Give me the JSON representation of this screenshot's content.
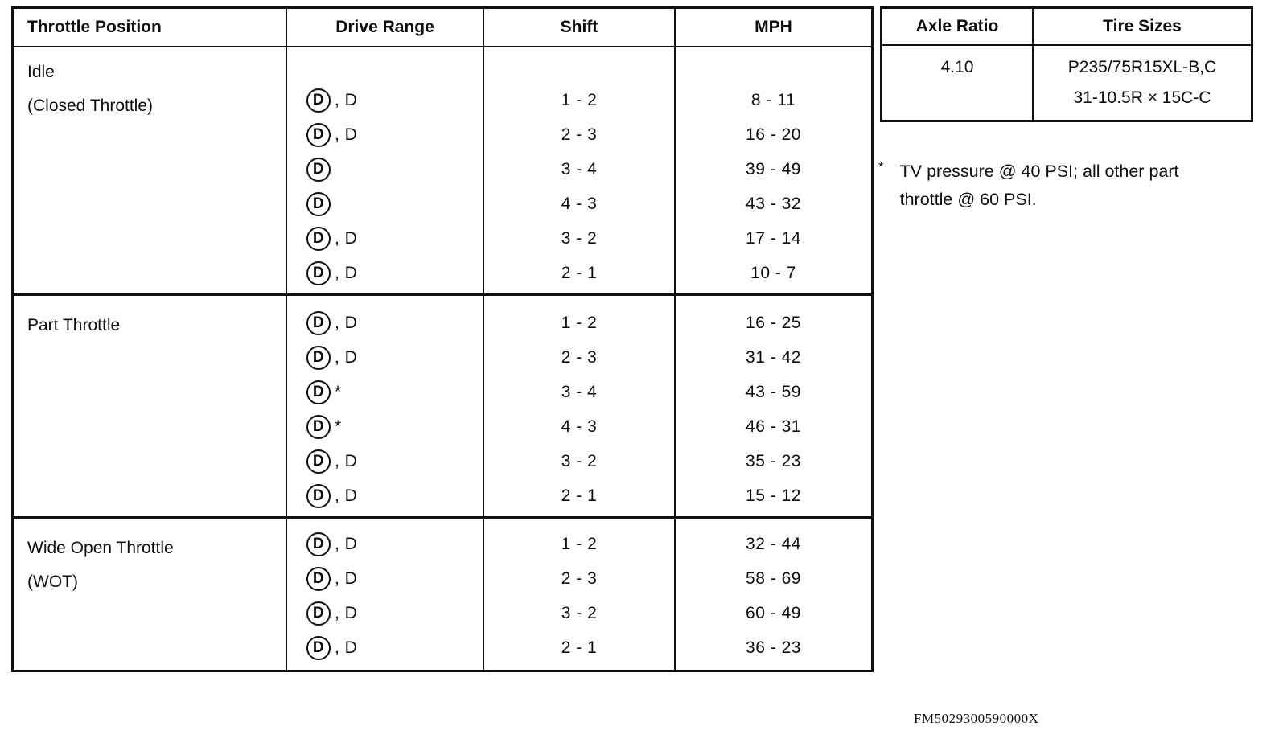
{
  "shift_table": {
    "headers": [
      "Throttle Position",
      "Drive Range",
      "Shift",
      "MPH"
    ],
    "groups": [
      {
        "position": [
          "Idle",
          "(Closed Throttle)"
        ],
        "rows": [
          {
            "circle": "D",
            "suffix": ", D",
            "shift": "1 - 2",
            "mph": "8 - 11"
          },
          {
            "circle": "D",
            "suffix": ", D",
            "shift": "2 - 3",
            "mph": "16 - 20"
          },
          {
            "circle": "D",
            "suffix": "",
            "shift": "3 - 4",
            "mph": "39 - 49"
          },
          {
            "circle": "D",
            "suffix": "",
            "shift": "4 - 3",
            "mph": "43 - 32"
          },
          {
            "circle": "D",
            "suffix": ", D",
            "shift": "3 - 2",
            "mph": "17 - 14"
          },
          {
            "circle": "D",
            "suffix": ", D",
            "shift": "2 - 1",
            "mph": "10 - 7"
          }
        ]
      },
      {
        "position": [
          "Part Throttle"
        ],
        "rows": [
          {
            "circle": "D",
            "suffix": ", D",
            "shift": "1 - 2",
            "mph": "16 - 25"
          },
          {
            "circle": "D",
            "suffix": ", D",
            "shift": "2 - 3",
            "mph": "31 - 42"
          },
          {
            "circle": "D",
            "suffix": "*",
            "shift": "3 - 4",
            "mph": "43 - 59"
          },
          {
            "circle": "D",
            "suffix": "*",
            "shift": "4 - 3",
            "mph": "46 - 31"
          },
          {
            "circle": "D",
            "suffix": ", D",
            "shift": "3 - 2",
            "mph": "35 - 23"
          },
          {
            "circle": "D",
            "suffix": ", D",
            "shift": "2 - 1",
            "mph": "15 - 12"
          }
        ]
      },
      {
        "position": [
          "Wide Open Throttle",
          "(WOT)"
        ],
        "rows": [
          {
            "circle": "D",
            "suffix": ", D",
            "shift": "1 - 2",
            "mph": "32 - 44"
          },
          {
            "circle": "D",
            "suffix": ", D",
            "shift": "2 - 3",
            "mph": "58 - 69"
          },
          {
            "circle": "D",
            "suffix": ", D",
            "shift": "3 - 2",
            "mph": "60 - 49"
          },
          {
            "circle": "D",
            "suffix": ", D",
            "shift": "2 - 1",
            "mph": "36 - 23"
          }
        ]
      }
    ]
  },
  "axle_table": {
    "headers": [
      "Axle Ratio",
      "Tire Sizes"
    ],
    "row": {
      "axle_ratio": "4.10",
      "tire_sizes": [
        "P235/75R15XL-B,C",
        "31-10.5R × 15C-C"
      ]
    }
  },
  "footnote": {
    "marker": "*",
    "lines": [
      "TV pressure @ 40 PSI; all other part",
      "throttle @ 60 PSI."
    ]
  },
  "page": {
    "doc_code": "FM5029300590000X"
  }
}
